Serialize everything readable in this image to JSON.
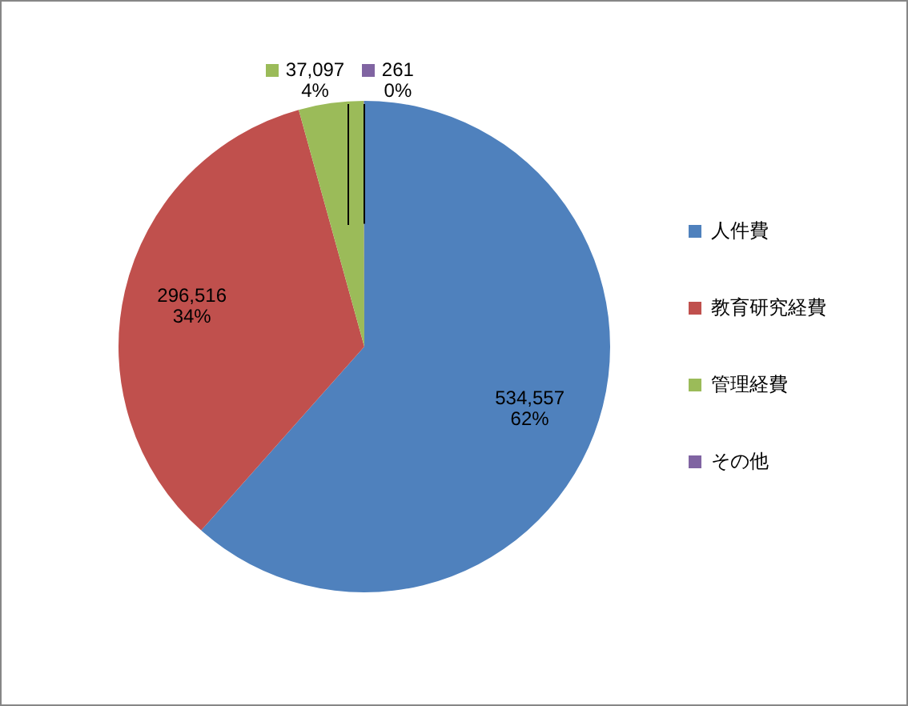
{
  "chart_data": {
    "type": "pie",
    "categories": [
      "人件費",
      "教育研究経費",
      "管理経費",
      "その他"
    ],
    "values": [
      534557,
      296516,
      37097,
      261
    ],
    "colors": [
      "#4f81bd",
      "#c0504d",
      "#9bbb59",
      "#8064a2"
    ],
    "value_labels": [
      "534,557\n62%",
      "296,516\n34%",
      "37,097\n4%",
      "261\n0%"
    ],
    "legend": "right"
  }
}
